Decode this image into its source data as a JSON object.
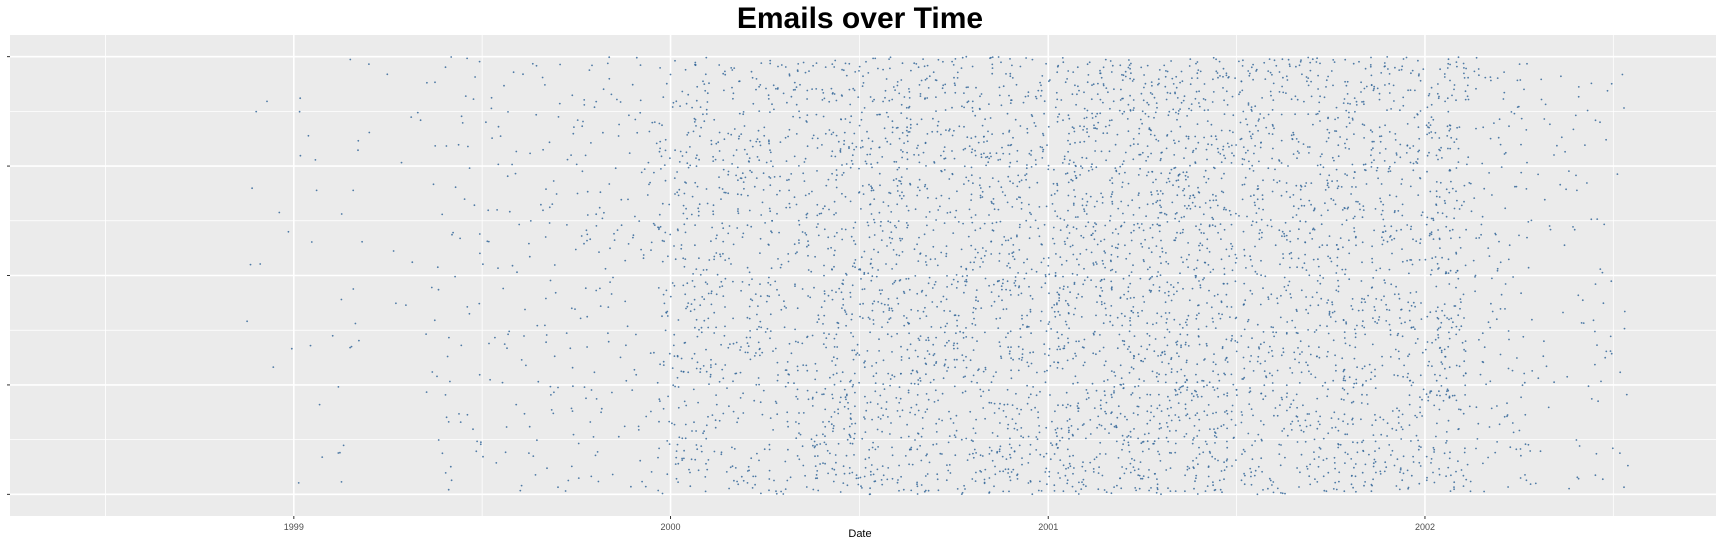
{
  "chart_data": {
    "type": "scatter",
    "title": "Emails over Time",
    "xlabel": "Date",
    "ylabel": "",
    "x_axis_type": "date",
    "x_range": [
      "1998-04-01",
      "2002-10-10"
    ],
    "x_tick_labels": [
      "1999",
      "2000",
      "2001",
      "2002"
    ],
    "x_ticks": [
      "1999-01-01",
      "2000-01-01",
      "2001-01-01",
      "2002-01-01"
    ],
    "y_tick_count": 5,
    "y_tick_labels": [],
    "y_values": "jittered, uniform across the full y range (no printed labels)",
    "grid": true,
    "legend": "none",
    "point_color": "#336699",
    "panel_background": "#ebebeb",
    "grid_color": "#ffffff",
    "density_by_period": [
      {
        "start": "1998-05-01",
        "end": "1998-05-31",
        "relative_density": 0.001
      },
      {
        "start": "1998-10-01",
        "end": "1998-10-31",
        "relative_density": 0.001
      },
      {
        "start": "1998-11-01",
        "end": "1999-05-15",
        "relative_density": 0.03
      },
      {
        "start": "1999-05-15",
        "end": "1999-08-31",
        "relative_density": 0.12
      },
      {
        "start": "1999-09-01",
        "end": "1999-12-20",
        "relative_density": 0.18
      },
      {
        "start": "1999-12-20",
        "end": "2000-05-31",
        "relative_density": 0.65
      },
      {
        "start": "2000-06-01",
        "end": "2000-12-31",
        "relative_density": 0.85
      },
      {
        "start": "2001-01-01",
        "end": "2001-06-30",
        "relative_density": 1.0
      },
      {
        "start": "2001-07-01",
        "end": "2001-12-31",
        "relative_density": 0.8
      },
      {
        "start": "2002-01-01",
        "end": "2002-02-10",
        "relative_density": 0.95
      },
      {
        "start": "2002-02-10",
        "end": "2002-04-15",
        "relative_density": 0.25
      },
      {
        "start": "2002-04-15",
        "end": "2002-07-20",
        "relative_density": 0.1
      }
    ]
  }
}
